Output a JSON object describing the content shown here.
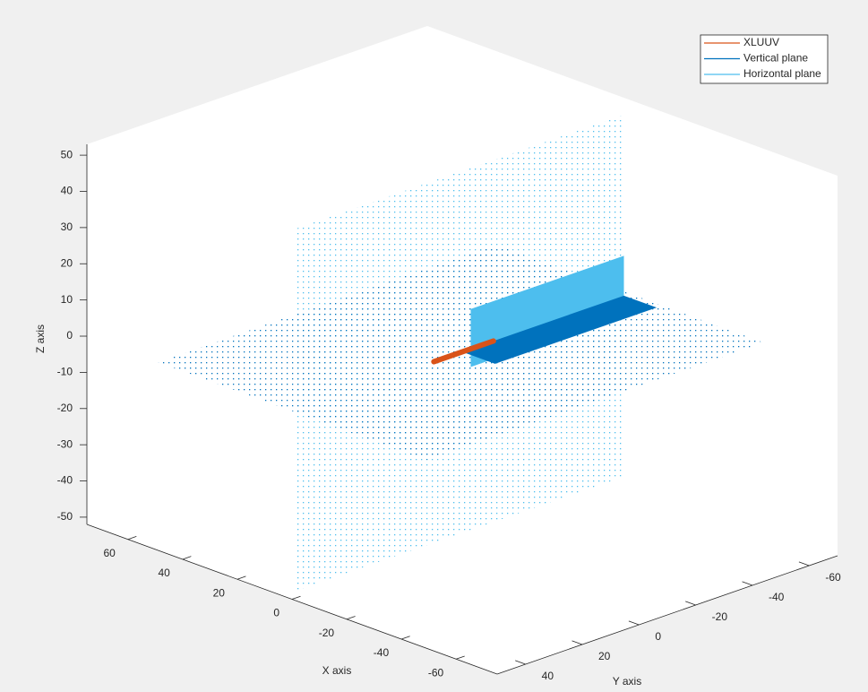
{
  "chart_data": {
    "type": "scatter3d",
    "xlabel": "X axis",
    "ylabel": "Y axis",
    "zlabel": "Z axis",
    "xlim": [
      -75,
      75
    ],
    "ylim": [
      -70,
      50
    ],
    "zlim": [
      -52,
      53
    ],
    "xticks": [
      -60,
      -40,
      -20,
      0,
      20,
      40,
      60
    ],
    "yticks": [
      -60,
      -40,
      -20,
      0,
      20,
      40
    ],
    "zticks": [
      -50,
      -40,
      -30,
      -20,
      -10,
      0,
      10,
      20,
      30,
      40,
      50
    ],
    "legend": "upper right",
    "series": [
      {
        "name": "XLUUV",
        "color": "#d95319",
        "x": [
          0,
          0
        ],
        "y": [
          0,
          -21
        ],
        "z": [
          0,
          0
        ]
      },
      {
        "name": "Vertical plane",
        "color": "#0072bd",
        "regions": [
          {
            "style": "dots",
            "x": [
              49,
              49,
              -49,
              -49
            ],
            "y": [
              50,
              -69,
              -69,
              50
            ],
            "z": [
              0,
              0,
              0,
              0
            ]
          },
          {
            "style": "solid",
            "x": [
              0,
              0,
              -12,
              -12
            ],
            "y": [
              -10,
              -67,
              -67,
              -10
            ],
            "z": [
              0,
              0,
              0,
              0
            ]
          }
        ]
      },
      {
        "name": "Horizontal plane",
        "color": "#4dbeee",
        "regions": [
          {
            "style": "dots",
            "x": [
              0,
              0,
              0,
              0
            ],
            "y": [
              49,
              -67,
              -67,
              49
            ],
            "z": [
              50,
              50,
              -50,
              -50
            ]
          },
          {
            "style": "solid",
            "x": [
              0,
              0,
              0,
              0
            ],
            "y": [
              -13,
              -67,
              -67,
              -13
            ],
            "z": [
              11,
              11,
              -5,
              -5
            ]
          }
        ]
      }
    ]
  }
}
